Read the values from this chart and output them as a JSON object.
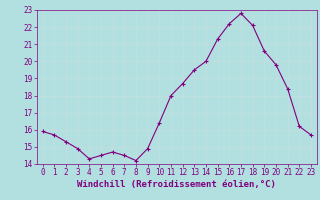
{
  "x": [
    0,
    1,
    2,
    3,
    4,
    5,
    6,
    7,
    8,
    9,
    10,
    11,
    12,
    13,
    14,
    15,
    16,
    17,
    18,
    19,
    20,
    21,
    22,
    23
  ],
  "y": [
    15.9,
    15.7,
    15.3,
    14.9,
    14.3,
    14.5,
    14.7,
    14.5,
    14.2,
    14.9,
    16.4,
    18.0,
    18.7,
    19.5,
    20.0,
    21.3,
    22.2,
    22.8,
    22.1,
    20.6,
    19.8,
    18.4,
    16.2,
    15.7
  ],
  "line_color": "#800080",
  "marker": "+",
  "marker_color": "#800080",
  "bg_color": "#b2e0e0",
  "grid_color": "#c8dede",
  "xlabel": "Windchill (Refroidissement éolien,°C)",
  "xlabel_color": "#800080",
  "tick_color": "#800080",
  "ylim": [
    14,
    23
  ],
  "xlim": [
    -0.5,
    23.5
  ],
  "yticks": [
    14,
    15,
    16,
    17,
    18,
    19,
    20,
    21,
    22,
    23
  ],
  "xticks": [
    0,
    1,
    2,
    3,
    4,
    5,
    6,
    7,
    8,
    9,
    10,
    11,
    12,
    13,
    14,
    15,
    16,
    17,
    18,
    19,
    20,
    21,
    22,
    23
  ],
  "tick_fontsize": 5.5,
  "xlabel_fontsize": 6.5
}
